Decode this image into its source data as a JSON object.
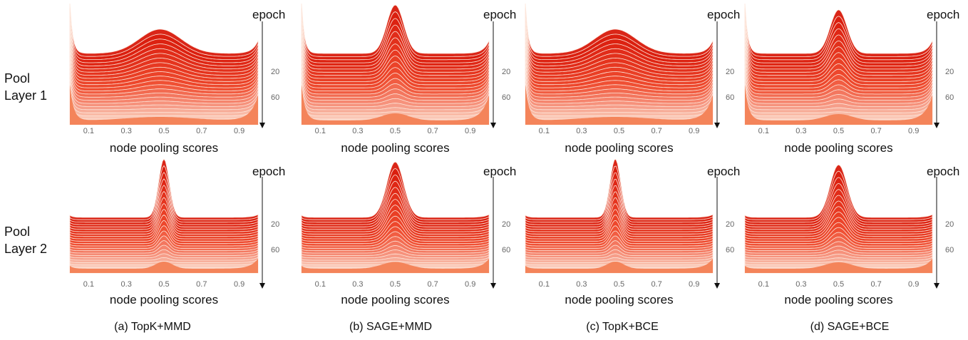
{
  "figure": {
    "row_labels": [
      {
        "line1": "Pool",
        "line2": "Layer 1"
      },
      {
        "line1": "Pool",
        "line2": "Layer 2"
      }
    ],
    "captions": [
      "(a) TopK+MMD",
      "(b) SAGE+MMD",
      "(c) TopK+BCE",
      "(d) SAGE+BCE"
    ]
  },
  "colors": {
    "front_fill": "#f4845a",
    "back_ridge": "#d81a0c",
    "mid_ridge": "#ee4a2e",
    "light_ridge": "#fbd4c4",
    "ridge_line": "#fde7dc"
  },
  "chart_data": [
    {
      "type": "area",
      "panel": "a",
      "row": "Pool Layer 1",
      "xlabel": "node pooling scores",
      "ylabel": "epoch",
      "xticks": [
        "0.1",
        "0.3",
        "0.5",
        "0.7",
        "0.9"
      ],
      "yticks": [
        "20",
        "60"
      ],
      "xlim": [
        0,
        1
      ],
      "epoch_axis": "downward",
      "back_peak_x": 0.48,
      "back_peak_height": 0.5,
      "peak_sharpness": "broad"
    },
    {
      "type": "area",
      "panel": "b",
      "row": "Pool Layer 1",
      "xlabel": "node pooling scores",
      "ylabel": "epoch",
      "xticks": [
        "0.1",
        "0.3",
        "0.5",
        "0.7",
        "0.9"
      ],
      "yticks": [
        "20",
        "60"
      ],
      "xlim": [
        0,
        1
      ],
      "epoch_axis": "downward",
      "back_peak_x": 0.5,
      "back_peak_height": 1.0,
      "peak_sharpness": "sharp"
    },
    {
      "type": "area",
      "panel": "c",
      "row": "Pool Layer 1",
      "xlabel": "node pooling scores",
      "ylabel": "epoch",
      "xticks": [
        "0.1",
        "0.3",
        "0.5",
        "0.7",
        "0.9"
      ],
      "yticks": [
        "20",
        "60"
      ],
      "xlim": [
        0,
        1
      ],
      "epoch_axis": "downward",
      "back_peak_x": 0.48,
      "back_peak_height": 0.5,
      "peak_sharpness": "broad"
    },
    {
      "type": "area",
      "panel": "d",
      "row": "Pool Layer 1",
      "xlabel": "node pooling scores",
      "ylabel": "epoch",
      "xticks": [
        "0.1",
        "0.3",
        "0.5",
        "0.7",
        "0.9"
      ],
      "yticks": [
        "20",
        "60"
      ],
      "xlim": [
        0,
        1
      ],
      "epoch_axis": "downward",
      "back_peak_x": 0.5,
      "back_peak_height": 0.9,
      "peak_sharpness": "sharp"
    },
    {
      "type": "area",
      "panel": "a",
      "row": "Pool Layer 2",
      "xlabel": "node pooling scores",
      "ylabel": "epoch",
      "xticks": [
        "0.1",
        "0.3",
        "0.5",
        "0.7",
        "0.9"
      ],
      "yticks": [
        "20",
        "60"
      ],
      "xlim": [
        0,
        1
      ],
      "epoch_axis": "downward",
      "back_peak_x": 0.5,
      "back_peak_height": 1.0,
      "peak_sharpness": "very sharp"
    },
    {
      "type": "area",
      "panel": "b",
      "row": "Pool Layer 2",
      "xlabel": "node pooling scores",
      "ylabel": "epoch",
      "xticks": [
        "0.1",
        "0.3",
        "0.5",
        "0.7",
        "0.9"
      ],
      "yticks": [
        "20",
        "60"
      ],
      "xlim": [
        0,
        1
      ],
      "epoch_axis": "downward",
      "back_peak_x": 0.5,
      "back_peak_height": 0.95,
      "peak_sharpness": "sharp"
    },
    {
      "type": "area",
      "panel": "c",
      "row": "Pool Layer 2",
      "xlabel": "node pooling scores",
      "ylabel": "epoch",
      "xticks": [
        "0.1",
        "0.3",
        "0.5",
        "0.7",
        "0.9"
      ],
      "yticks": [
        "20",
        "60"
      ],
      "xlim": [
        0,
        1
      ],
      "epoch_axis": "downward",
      "back_peak_x": 0.48,
      "back_peak_height": 1.0,
      "peak_sharpness": "very sharp"
    },
    {
      "type": "area",
      "panel": "d",
      "row": "Pool Layer 2",
      "xlabel": "node pooling scores",
      "ylabel": "epoch",
      "xticks": [
        "0.1",
        "0.3",
        "0.5",
        "0.7",
        "0.9"
      ],
      "yticks": [
        "20",
        "60"
      ],
      "xlim": [
        0,
        1
      ],
      "epoch_axis": "downward",
      "back_peak_x": 0.5,
      "back_peak_height": 0.9,
      "peak_sharpness": "sharp"
    }
  ]
}
